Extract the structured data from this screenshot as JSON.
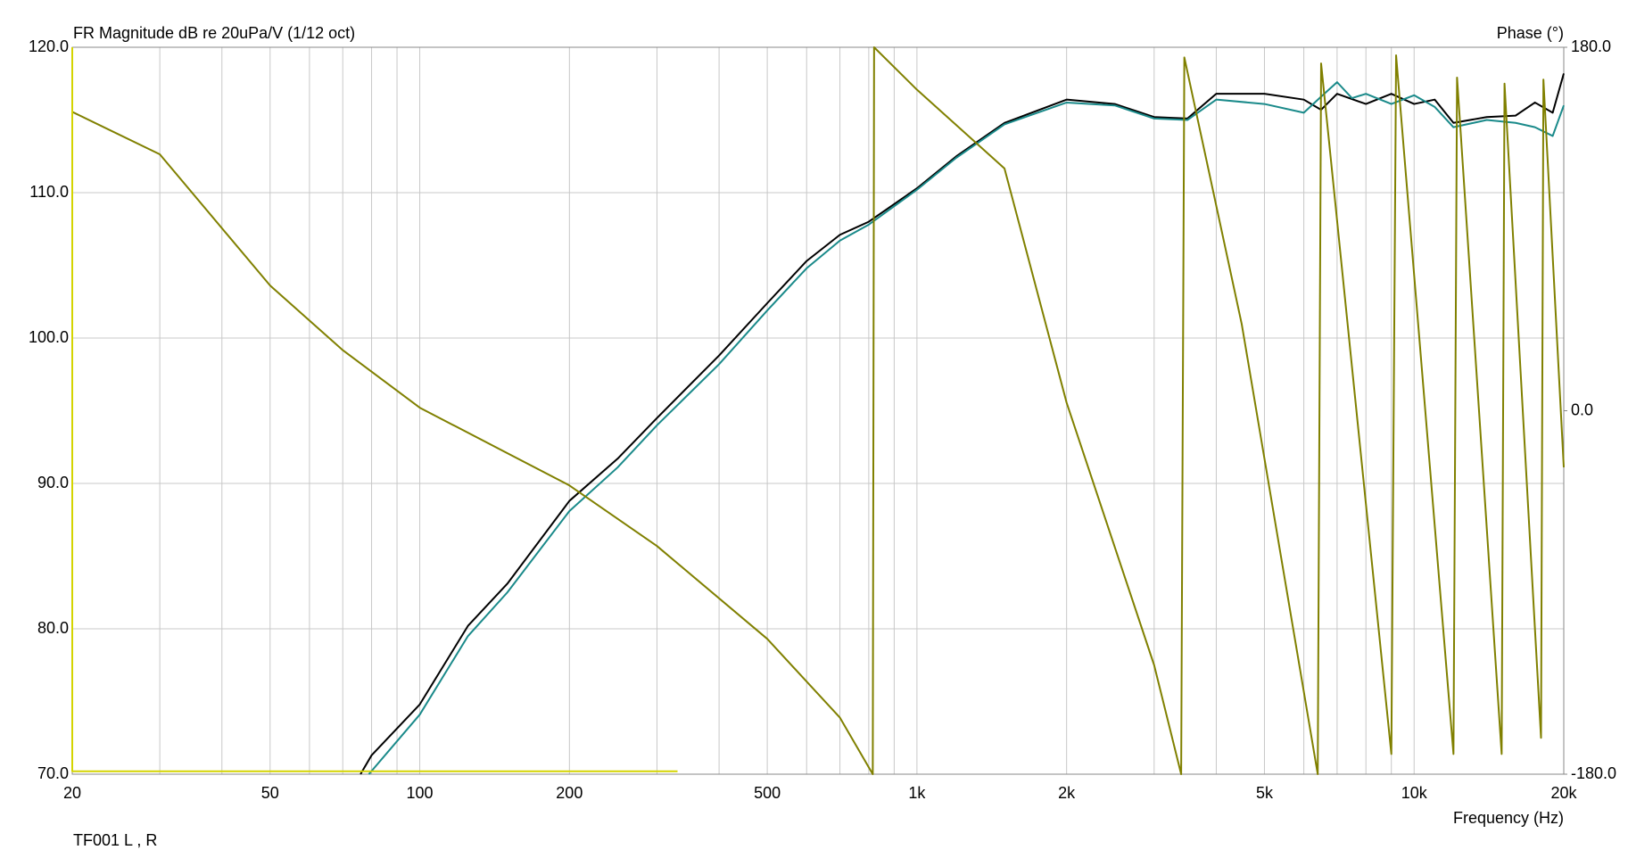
{
  "chart_data": {
    "type": "line",
    "title": "FR Magnitude dB re 20uPa/V (1/12 oct)",
    "y2label": "Phase (°)",
    "xlabel": "Frequency (Hz)",
    "footnote": "TF001 L , R",
    "xscale": "log",
    "grid": true,
    "xlim": [
      20,
      20000
    ],
    "ylim": [
      70,
      120
    ],
    "y2lim": [
      -180,
      180
    ],
    "xticks": [
      20,
      50,
      100,
      200,
      500,
      {
        "value": 1000,
        "label": "1k"
      },
      {
        "value": 2000,
        "label": "2k"
      },
      {
        "value": 5000,
        "label": "5k"
      },
      {
        "value": 10000,
        "label": "10k"
      },
      {
        "value": 20000,
        "label": "20k"
      }
    ],
    "xminorticks": [
      30,
      40,
      60,
      70,
      80,
      90,
      300,
      400,
      600,
      700,
      800,
      900,
      3000,
      4000,
      6000,
      7000,
      8000,
      9000
    ],
    "yticks": [
      {
        "value": 70,
        "label": "70.0"
      },
      {
        "value": 80,
        "label": "80.0"
      },
      {
        "value": 90,
        "label": "90.0"
      },
      {
        "value": 100,
        "label": "100.0"
      },
      {
        "value": 110,
        "label": "110.0"
      },
      {
        "value": 120,
        "label": "120.0"
      }
    ],
    "y2ticks": [
      {
        "value": -180,
        "label": "-180.0"
      },
      {
        "value": 0,
        "label": "0.0"
      },
      {
        "value": 180,
        "label": "180.0"
      }
    ],
    "series": [
      {
        "color": "#000000",
        "x": [
          76,
          80,
          100,
          125,
          150,
          200,
          250,
          300,
          400,
          500,
          600,
          700,
          800,
          1000,
          1200,
          1500,
          2000,
          2500,
          3000,
          3500,
          4000,
          5000,
          6000,
          6500,
          7000,
          8000,
          9000,
          10000,
          11000,
          12000,
          14000,
          16000,
          17500,
          19000,
          20000
        ],
        "values": [
          70,
          71.3,
          74.8,
          80.2,
          83.1,
          88.8,
          91.7,
          94.5,
          98.8,
          102.4,
          105.3,
          107.1,
          108.0,
          110.3,
          112.5,
          114.8,
          116.4,
          116.1,
          115.2,
          115.1,
          116.8,
          116.8,
          116.4,
          115.7,
          116.8,
          116.1,
          116.8,
          116.1,
          116.4,
          114.8,
          115.2,
          115.3,
          116.2,
          115.5,
          118.2
        ]
      },
      {
        "color": "#1a8a8a",
        "x": [
          79,
          100,
          125,
          150,
          200,
          250,
          300,
          400,
          500,
          600,
          700,
          800,
          1000,
          1200,
          1500,
          2000,
          2500,
          3000,
          3500,
          4000,
          5000,
          6000,
          6500,
          7000,
          7500,
          8000,
          9000,
          10000,
          11000,
          12000,
          14000,
          16000,
          17500,
          19000,
          20000
        ],
        "values": [
          70,
          74.1,
          79.5,
          82.5,
          88.1,
          91.1,
          94.0,
          98.2,
          101.9,
          104.8,
          106.7,
          107.8,
          110.2,
          112.4,
          114.7,
          116.2,
          116.0,
          115.1,
          115.0,
          116.4,
          116.1,
          115.5,
          116.6,
          117.6,
          116.5,
          116.8,
          116.1,
          116.7,
          115.9,
          114.5,
          115.0,
          114.8,
          114.5,
          113.9,
          116.0
        ]
      },
      {
        "color": "#808000",
        "axis": "y2",
        "x": [
          20,
          30,
          50,
          70,
          100,
          200,
          300,
          500,
          700,
          815,
          820,
          1000,
          1500,
          2000,
          3000,
          3400,
          3450,
          4500,
          6400,
          6500,
          9000,
          9200,
          12000,
          12200,
          15000,
          15200,
          18000,
          18200,
          20000
        ],
        "values": [
          148,
          127,
          62,
          30,
          1.5,
          -37,
          -67,
          -113,
          -152,
          -180,
          180,
          159,
          120,
          4,
          -126,
          -180,
          175,
          43,
          -180,
          172,
          -170,
          176,
          -170,
          165,
          -170,
          162,
          -162,
          164,
          -28
        ]
      },
      {
        "color": "#d4d400",
        "x": [
          20,
          20,
          330
        ],
        "values": [
          120,
          70.2,
          70.2
        ]
      }
    ]
  }
}
